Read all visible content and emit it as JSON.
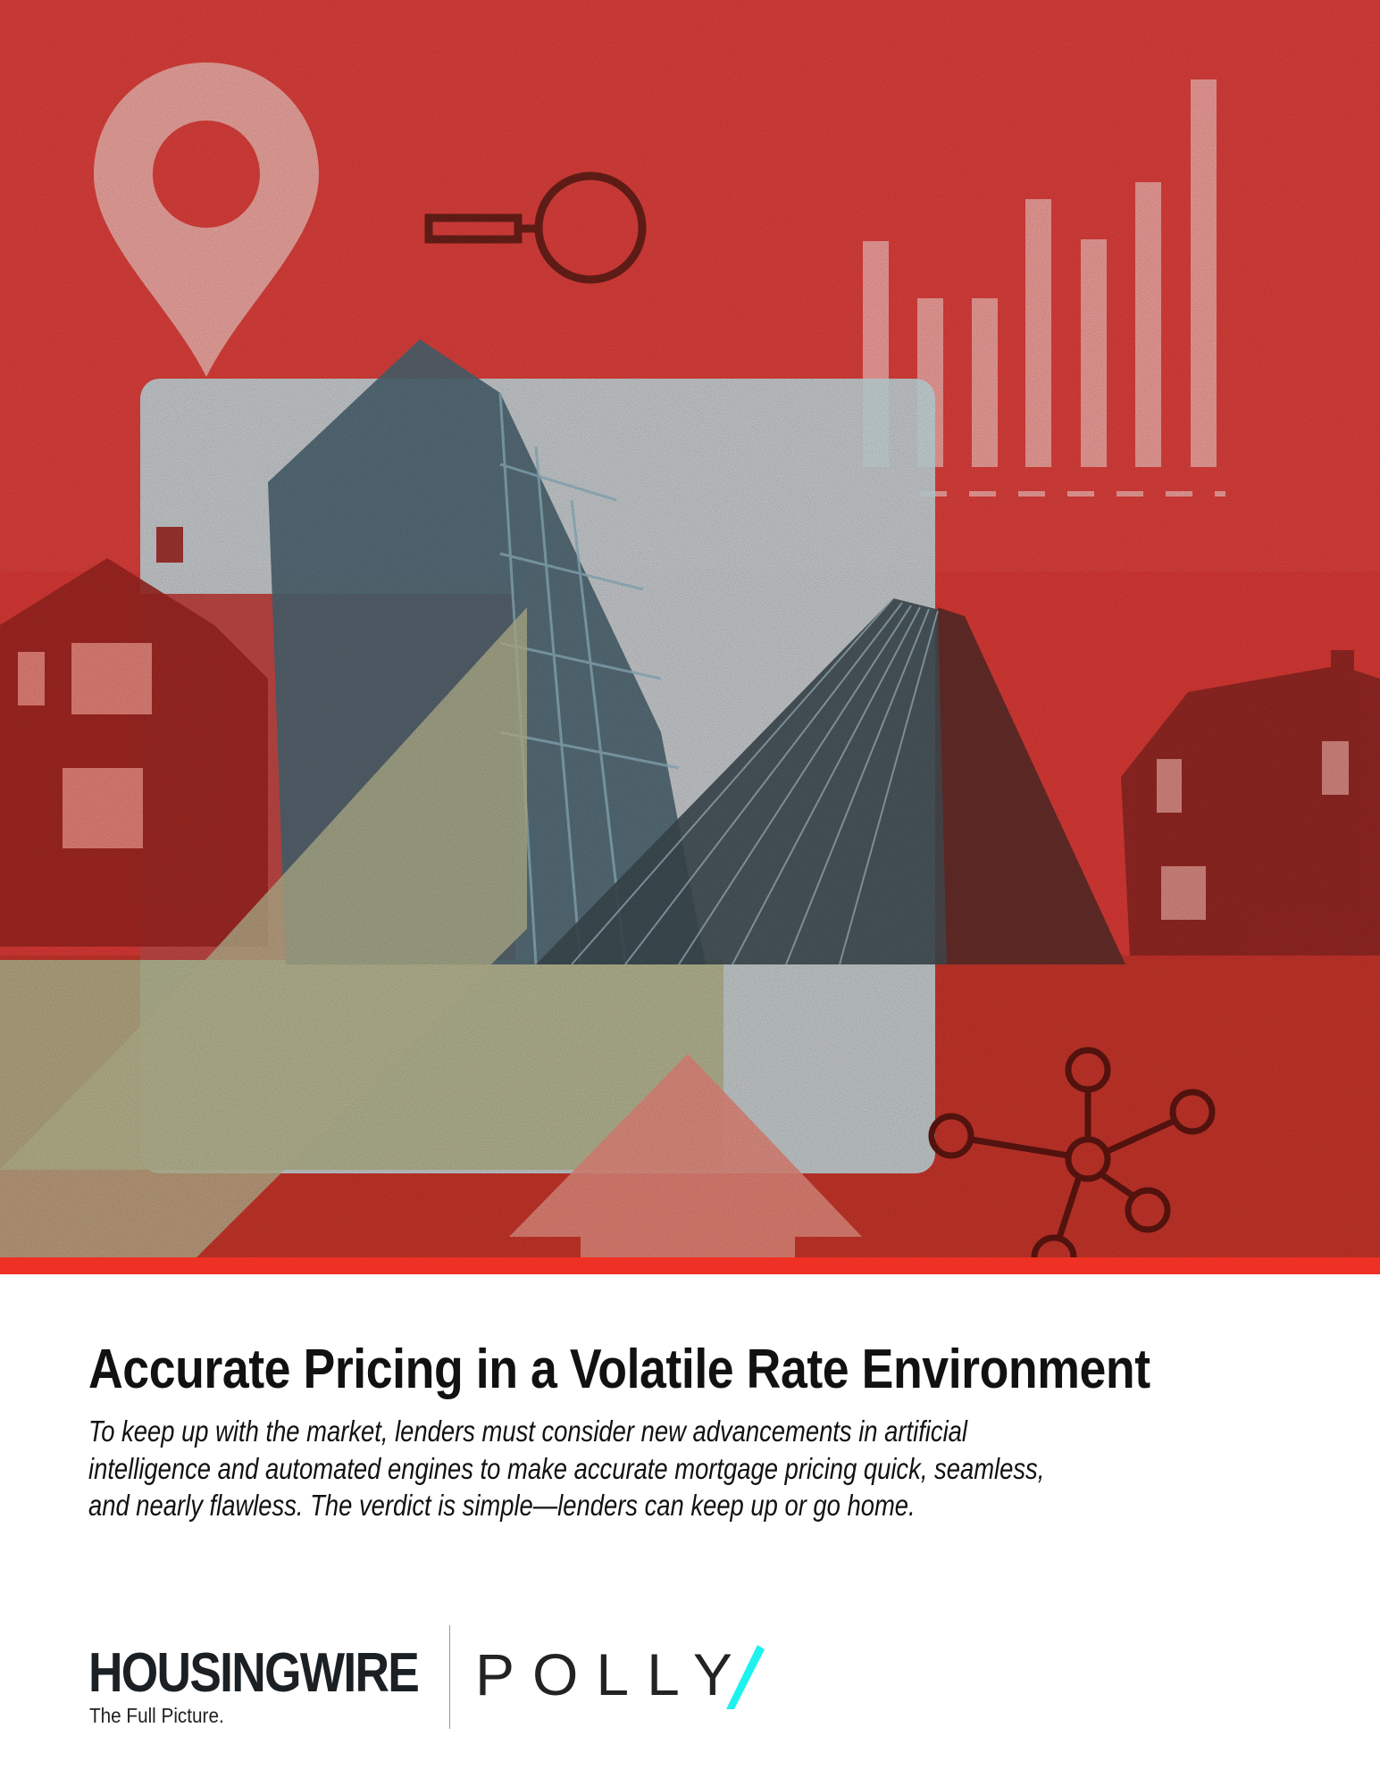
{
  "cover": {
    "illustration": "cover-illustration",
    "accent_color": "#ee3124"
  },
  "headline": {
    "title": "Accurate Pricing in a Volatile Rate Environment",
    "subtitle_lines": [
      "To keep up with the market, lenders must consider new advancements in artificial",
      "intelligence and automated engines to make accurate mortgage pricing quick, seamless,",
      "and nearly flawless. The verdict is simple—lenders can keep up or go home."
    ]
  },
  "logos": {
    "housingwire": "HOUSINGWIRE",
    "housingwire_tagline": "The Full Picture.",
    "polly": "POLLY",
    "polly_accent_color": "#1ef2ee"
  }
}
